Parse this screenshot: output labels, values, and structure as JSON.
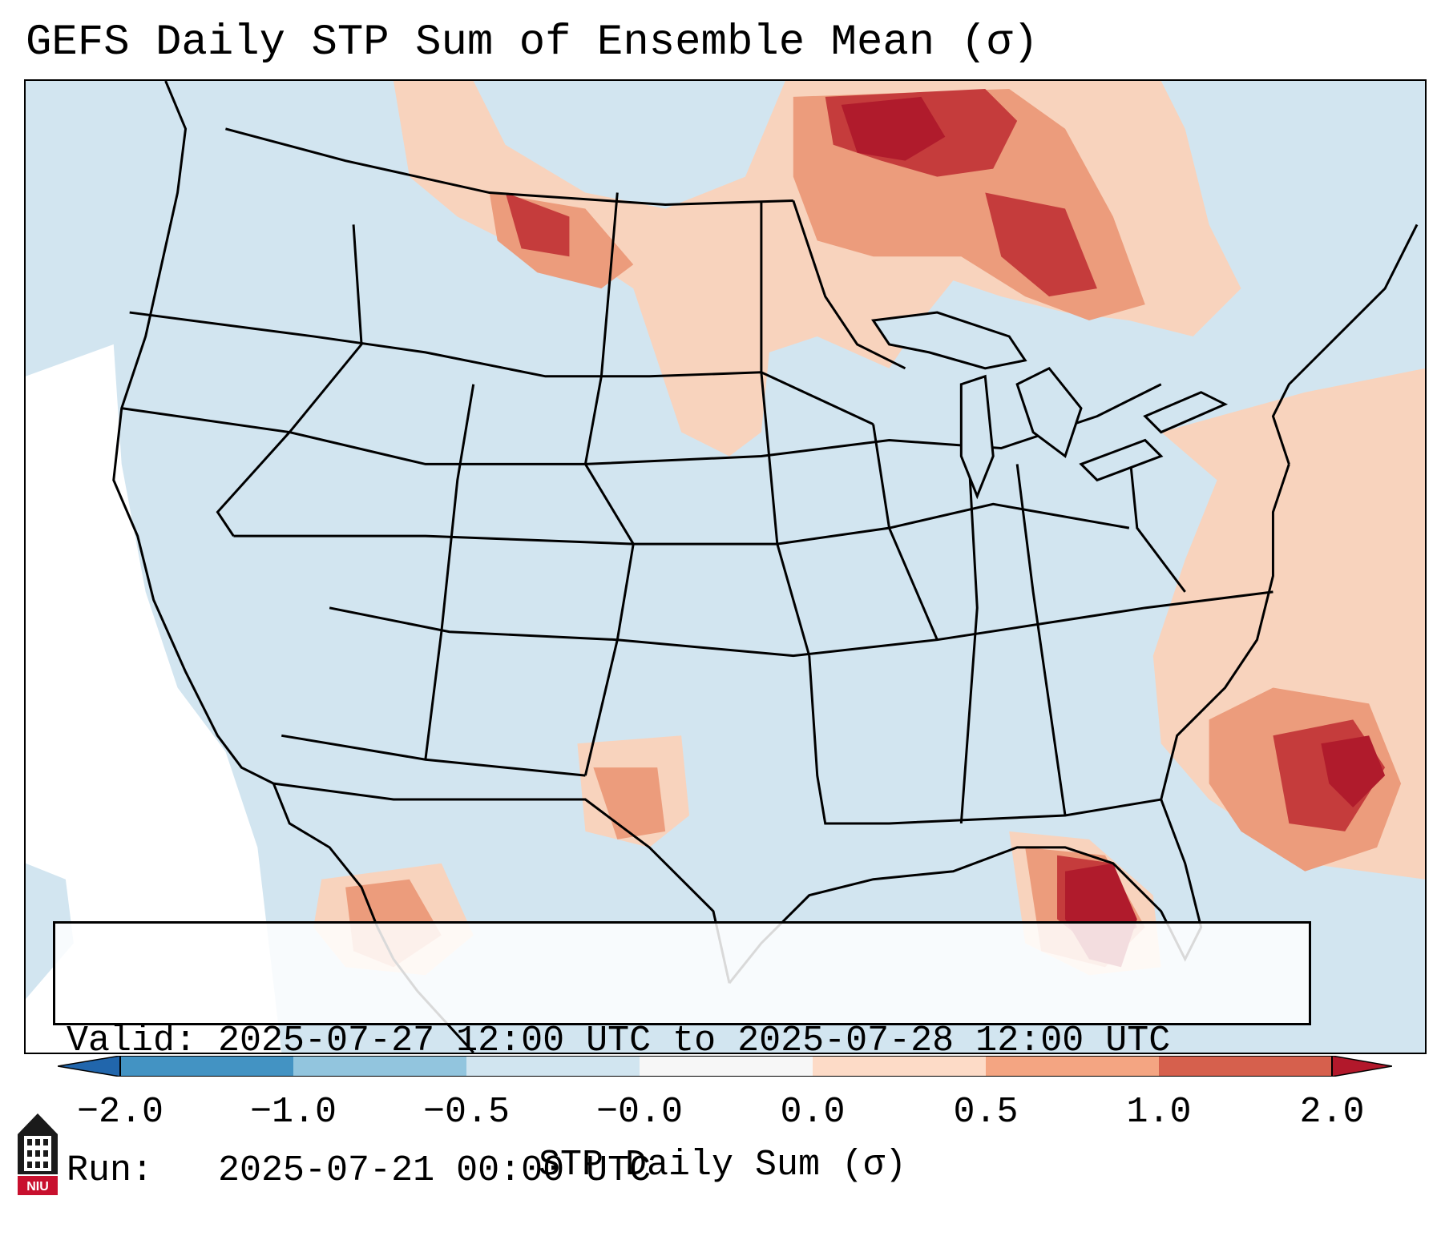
{
  "title": "GEFS Daily STP Sum of Ensemble Mean (σ)",
  "info": {
    "valid": "Valid: 2025-07-27 12:00 UTC to 2025-07-28 12:00 UTC",
    "run": "Run:   2025-07-21 00:00 UTC"
  },
  "colorbar": {
    "label": "STP Daily Sum (σ)",
    "ticks": [
      "−2.0",
      "−1.0",
      "−0.5",
      "−0.0",
      "0.0",
      "0.5",
      "1.0",
      "2.0"
    ],
    "colors": [
      "#2166ac",
      "#4393c3",
      "#92c5de",
      "#d1e5f0",
      "#f7f7f7",
      "#fddbc7",
      "#f4a582",
      "#d6604d",
      "#b2182b"
    ]
  },
  "map": {
    "background_color": "#d2e5f0",
    "content": "Anomaly shading over CONUS, Gulf of Mexico, western Atlantic; positive values over upper Midwest/Great Lakes, Florida and Atlantic"
  },
  "logo": {
    "text": "NIU"
  }
}
